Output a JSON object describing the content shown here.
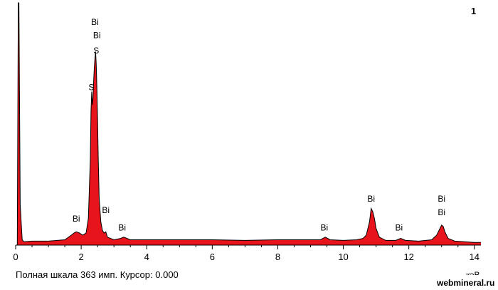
{
  "panel_number": "1",
  "status_line": "Полная шкала 363 имп. Курсор: 0.000",
  "axis_unit": "кэВ",
  "watermark": "webmineral.ru",
  "chart_data": {
    "type": "area",
    "series_color": "#e8141b",
    "outline_color": "#000000",
    "xlim": [
      0,
      14.2
    ],
    "ylim": [
      0,
      363
    ],
    "x_ticks": [
      {
        "value": 0,
        "label": "0"
      },
      {
        "value": 2,
        "label": "2"
      },
      {
        "value": 4,
        "label": "4"
      },
      {
        "value": 6,
        "label": "6"
      },
      {
        "value": 8,
        "label": "8"
      },
      {
        "value": 10,
        "label": "10"
      },
      {
        "value": 12,
        "label": "12"
      },
      {
        "value": 14,
        "label": "14"
      }
    ],
    "peak_labels": [
      {
        "text": "Bi",
        "x": 2.42,
        "y": 330
      },
      {
        "text": "Bi",
        "x": 2.48,
        "y": 310
      },
      {
        "text": "S",
        "x": 2.46,
        "y": 287
      },
      {
        "text": "S",
        "x": 2.31,
        "y": 232
      },
      {
        "text": "Bi",
        "x": 1.85,
        "y": 35
      },
      {
        "text": "Bi",
        "x": 2.75,
        "y": 48
      },
      {
        "text": "Bi",
        "x": 3.25,
        "y": 22
      },
      {
        "text": "Bi",
        "x": 9.42,
        "y": 22
      },
      {
        "text": "Bi",
        "x": 10.85,
        "y": 65
      },
      {
        "text": "Bi",
        "x": 11.7,
        "y": 22
      },
      {
        "text": "Bi",
        "x": 13.0,
        "y": 65
      },
      {
        "text": "Bi",
        "x": 13.0,
        "y": 45
      }
    ],
    "spectrum": {
      "x": [
        0.0,
        0.05,
        0.08,
        0.1,
        0.14,
        0.2,
        0.25,
        0.5,
        1.0,
        1.5,
        1.7,
        1.78,
        1.85,
        1.95,
        2.05,
        2.15,
        2.22,
        2.28,
        2.3,
        2.32,
        2.34,
        2.36,
        2.38,
        2.4,
        2.42,
        2.44,
        2.46,
        2.48,
        2.5,
        2.52,
        2.55,
        2.6,
        2.65,
        2.7,
        2.75,
        2.8,
        3.0,
        3.2,
        3.3,
        3.5,
        4.0,
        5.0,
        6.0,
        7.0,
        8.0,
        9.0,
        9.3,
        9.45,
        9.6,
        10.0,
        10.4,
        10.6,
        10.7,
        10.8,
        10.85,
        10.9,
        10.95,
        11.0,
        11.1,
        11.3,
        11.6,
        11.75,
        11.9,
        12.3,
        12.7,
        12.85,
        12.95,
        13.0,
        13.05,
        13.1,
        13.2,
        13.4,
        13.7,
        14.0,
        14.2
      ],
      "y": [
        0,
        0,
        363,
        363,
        60,
        8,
        5,
        6,
        6,
        8,
        15,
        18,
        20,
        18,
        15,
        18,
        40,
        130,
        200,
        230,
        210,
        220,
        245,
        265,
        280,
        290,
        270,
        235,
        190,
        130,
        70,
        35,
        22,
        18,
        20,
        12,
        8,
        10,
        12,
        8,
        8,
        8,
        8,
        7,
        8,
        8,
        8,
        12,
        8,
        7,
        8,
        10,
        15,
        35,
        55,
        50,
        40,
        25,
        12,
        7,
        7,
        10,
        7,
        6,
        8,
        15,
        25,
        30,
        28,
        20,
        10,
        6,
        5,
        4,
        4
      ]
    }
  }
}
